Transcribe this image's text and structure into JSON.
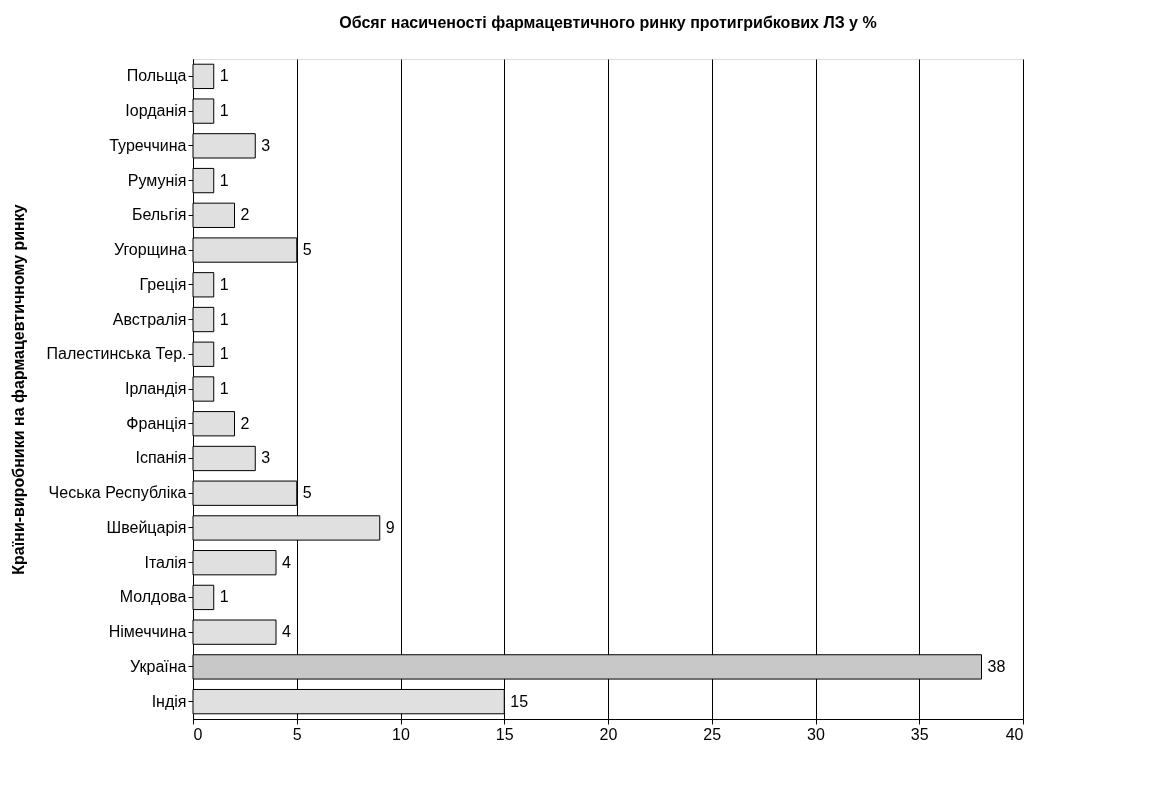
{
  "chart_data": {
    "type": "bar",
    "orientation": "horizontal",
    "title": "Обсяг насиченості фармацевтичного ринку протигрибкових ЛЗ у %",
    "ylabel": "Країни-виробники на фармацевтичному ринку",
    "categories": [
      "Польща",
      "Іорданія",
      "Туреччина",
      "Румунія",
      "Бельгія",
      "Угорщина",
      "Греція",
      "Австралія",
      "Палестинська Тер.",
      "Ірландія",
      "Франція",
      "Іспанія",
      "Чеська Республіка",
      "Швейцарія",
      "Італія",
      "Молдова",
      "Німеччина",
      "Україна",
      "Індія"
    ],
    "values": [
      1,
      1,
      3,
      1,
      2,
      5,
      1,
      1,
      1,
      1,
      2,
      3,
      5,
      9,
      4,
      1,
      4,
      38,
      15
    ],
    "colors": [
      "#e0e0e0",
      "#e0e0e0",
      "#e0e0e0",
      "#e0e0e0",
      "#e0e0e0",
      "#e0e0e0",
      "#e0e0e0",
      "#e0e0e0",
      "#e0e0e0",
      "#e0e0e0",
      "#e0e0e0",
      "#e0e0e0",
      "#e0e0e0",
      "#e0e0e0",
      "#e0e0e0",
      "#e0e0e0",
      "#e0e0e0",
      "#c8c8c8",
      "#e0e0e0"
    ],
    "xlim": [
      0,
      40
    ],
    "xticks": [
      0,
      5,
      10,
      15,
      20,
      25,
      30,
      35,
      40
    ],
    "grid": "x",
    "data_labels": true
  }
}
